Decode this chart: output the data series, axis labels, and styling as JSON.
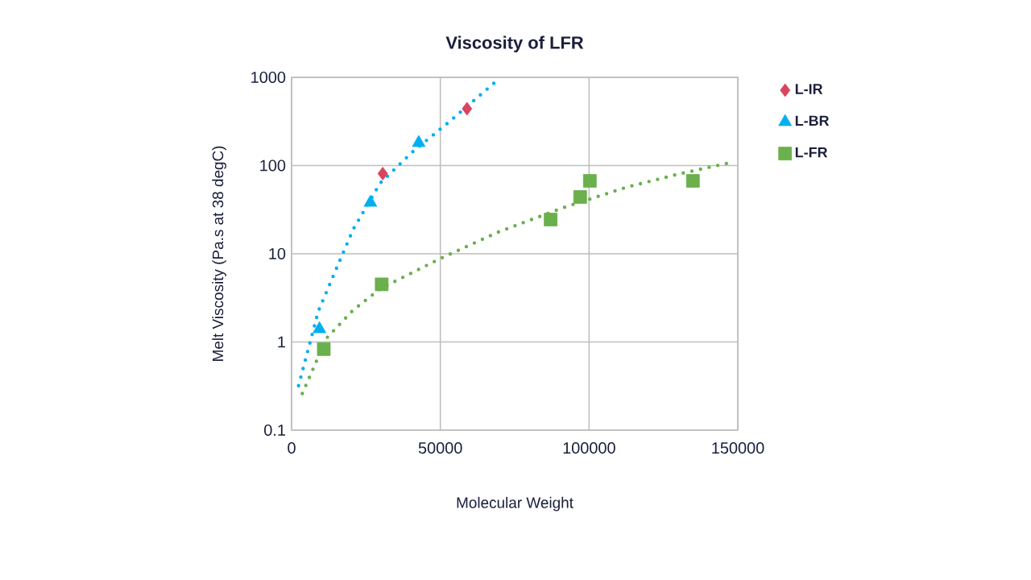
{
  "chart_data": {
    "type": "scatter",
    "title": "Viscosity of LFR",
    "xlabel": "Molecular Weight",
    "ylabel": "Melt Viscosity (Pa.s at 38 degC)",
    "log": "y",
    "grid": true,
    "legend": "top right",
    "xlim": [
      0,
      150000
    ],
    "ylim": [
      0.1,
      1000
    ],
    "xticks": [
      0,
      50000,
      100000,
      150000
    ],
    "yticks": [
      0.1,
      1,
      10,
      100,
      1000
    ],
    "series": [
      {
        "name": "L-IR",
        "color": "#d9445f",
        "marker": "diamond",
        "x": [
          30650,
          58960
        ],
        "values": [
          81,
          441
        ]
      },
      {
        "name": "L-BR",
        "color": "#00b0f0",
        "marker": "triangle",
        "x": [
          9375,
          26500,
          42730
        ],
        "values": [
          1.4,
          38,
          181
        ]
      },
      {
        "name": "L-FR",
        "color": "#6ab04c",
        "marker": "square",
        "x": [
          10820,
          30290,
          87090,
          97000,
          100250,
          134900
        ],
        "values": [
          0.83,
          4.5,
          24.4,
          44,
          67,
          67
        ]
      },
      {
        "type": "line",
        "line_style": "dotted",
        "color": "#00b0f0",
        "x": [
          2340,
          9000,
          15300,
          20700,
          29750,
          40570,
          53200,
          68000
        ],
        "values": [
          0.32,
          2.24,
          7.1,
          18.9,
          63,
          142,
          318,
          857
        ]
      },
      {
        "type": "line",
        "line_style": "dotted",
        "color": "#6ab04c",
        "x": [
          3600,
          11700,
          20700,
          29750,
          49600,
          69400,
          91000,
          112700,
          130700,
          147000
        ],
        "values": [
          0.26,
          1.1,
          2.3,
          4.0,
          8.7,
          17.6,
          33,
          57,
          81,
          107
        ]
      }
    ]
  }
}
